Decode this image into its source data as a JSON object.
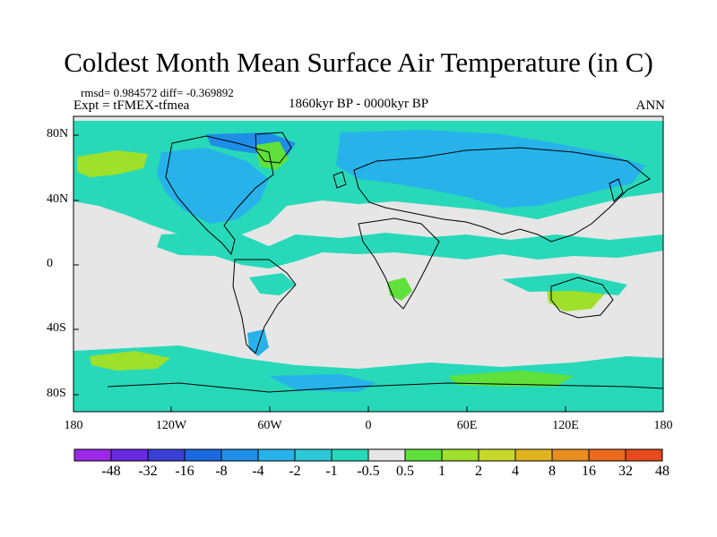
{
  "title": "Coldest Month Mean Surface Air Temperature (in C)",
  "stats": "rmsd= 0.984572 diff= -0.369892",
  "experiment": "Expt = tFMEX-tfmea",
  "period": "1860kyr BP - 0000kyr BP",
  "season": "ANN",
  "lat_labels": [
    "80N",
    "40N",
    "0",
    "40S",
    "80S"
  ],
  "lon_labels": [
    "180",
    "120W",
    "60W",
    "0",
    "60E",
    "120E",
    "180"
  ],
  "colorbar": {
    "labels": [
      "-48",
      "-32",
      "-16",
      "-8",
      "-4",
      "-2",
      "-1",
      "-0.5",
      "0.5",
      "1",
      "2",
      "4",
      "8",
      "16",
      "32",
      "48"
    ],
    "colors": [
      "#9a28e6",
      "#6a2ae0",
      "#3a3fd8",
      "#1c68e0",
      "#1f8ee8",
      "#27b2ea",
      "#2dc8d8",
      "#26d9b9",
      "#e6e6e6",
      "#5fe03a",
      "#9ee02a",
      "#c8d82a",
      "#e0b421",
      "#e88e1e",
      "#ea6a1e",
      "#e64a1e"
    ]
  },
  "colors": {
    "ocean_neutral": "#e6e6e6",
    "cool_light": "#27d9b9",
    "cool_medium": "#27b2ea",
    "cool_dark": "#1f8ee8",
    "warm_light": "#5fe03a",
    "warm_medium": "#9ee02a"
  }
}
